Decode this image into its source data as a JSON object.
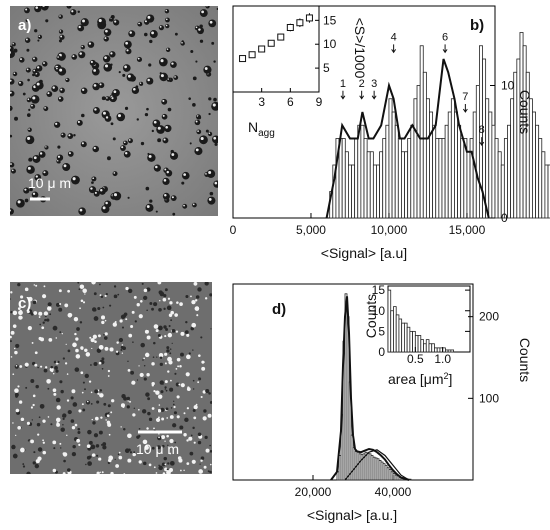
{
  "panels": {
    "a": {
      "label": "a)",
      "scale_bar": "10 μ m"
    },
    "b": {
      "label": "b)"
    },
    "c": {
      "label": "c)",
      "scale_bar": "10 μ m"
    },
    "d": {
      "label": "d)"
    }
  },
  "colors": {
    "photo_a_bg": "#8a8a8a",
    "photo_c_bg": "#6e6e6e",
    "bar_stroke": "#222222",
    "line": "#111111"
  },
  "chart_data": [
    {
      "id": "b",
      "type": "bar",
      "xlabel": "<Signal> [a.u]",
      "ylabel": "Counts",
      "x_ticks": [
        0,
        5000,
        10000,
        15000
      ],
      "x_tick_labels": [
        "0",
        "5,000",
        "10,000",
        "15,000"
      ],
      "y_ticks": [
        0,
        10
      ],
      "y_tick_labels": [
        "0",
        "10"
      ],
      "xlim": [
        0,
        16800
      ],
      "ylim": [
        0,
        16
      ],
      "bin_width": 200,
      "bins_start": 6000,
      "values": [
        0,
        2,
        4,
        6,
        6,
        6,
        5,
        4,
        4,
        6,
        7,
        7,
        6,
        5,
        5,
        4,
        4,
        5,
        6,
        7,
        9,
        8,
        7,
        6,
        5,
        5,
        6,
        7,
        9,
        10,
        13,
        11,
        9,
        8,
        7,
        6,
        6,
        6,
        7,
        8,
        9,
        8,
        7,
        6,
        6,
        5,
        6,
        8,
        10,
        13,
        12,
        9,
        8,
        7,
        6,
        5,
        4,
        6,
        7,
        9,
        11,
        12,
        14,
        13,
        11,
        9,
        8,
        7,
        6,
        5,
        4,
        4,
        5,
        5,
        6,
        6,
        4,
        3,
        2,
        2,
        2,
        0
      ],
      "fit": {
        "x": [
          6000,
          6500,
          7000,
          7500,
          8000,
          8300,
          8700,
          9000,
          9500,
          10000,
          10300,
          10700,
          11000,
          11500,
          12000,
          12500,
          13000,
          13500,
          13800,
          14200,
          14500,
          15000,
          15300,
          15700,
          16000,
          16400
        ],
        "y": [
          0,
          3,
          7,
          6,
          6,
          8,
          6,
          6,
          7,
          10,
          9,
          6,
          6,
          7,
          6,
          6,
          7,
          12,
          11,
          9,
          7,
          5,
          5,
          3,
          2,
          0
        ]
      },
      "peaks": [
        {
          "label": "1",
          "x": 7050,
          "y": 9
        },
        {
          "label": "2",
          "x": 8250,
          "y": 9
        },
        {
          "label": "3",
          "x": 9050,
          "y": 9
        },
        {
          "label": "4",
          "x": 10300,
          "y": 12.5
        },
        {
          "label": "6",
          "x": 13600,
          "y": 12.5
        },
        {
          "label": "7",
          "x": 14900,
          "y": 8
        },
        {
          "label": "8",
          "x": 15950,
          "y": 5.5
        }
      ],
      "inset": {
        "type": "scatter",
        "xlabel": "N",
        "xlabel_sub": "agg",
        "ylabel": "<S>/1000",
        "x_ticks": [
          3,
          6,
          9
        ],
        "x_tick_labels": [
          "3",
          "6",
          "9"
        ],
        "y_ticks": [
          5,
          10,
          15
        ],
        "y_tick_labels": [
          "5",
          "10",
          "15"
        ],
        "xlim": [
          0,
          9
        ],
        "ylim": [
          0,
          18
        ],
        "x": [
          1,
          2,
          3,
          4,
          5,
          6,
          7,
          8
        ],
        "y": [
          7,
          7.8,
          9,
          10.2,
          11.5,
          13.5,
          14.5,
          15.5
        ],
        "err": [
          0.5,
          0.5,
          0.6,
          0.6,
          0.7,
          0.8,
          0.9,
          1.0
        ]
      }
    },
    {
      "id": "d",
      "type": "bar",
      "xlabel": "<Signal> [a.u.]",
      "ylabel": "Counts",
      "x_ticks": [
        20000,
        40000
      ],
      "x_tick_labels": [
        "20,000",
        "40,000"
      ],
      "y_ticks": [
        100,
        200
      ],
      "y_tick_labels": [
        "100",
        "200"
      ],
      "xlim": [
        0,
        60000
      ],
      "ylim": [
        0,
        240
      ],
      "bin_width": 500,
      "bins_start": 26000,
      "values": [
        10,
        30,
        80,
        170,
        228,
        200,
        120,
        55,
        40,
        35,
        34,
        32,
        31,
        32,
        34,
        33,
        32,
        30,
        28,
        27,
        26,
        24,
        22,
        20,
        18,
        15,
        13,
        10,
        8,
        6,
        5,
        4,
        3,
        2,
        2,
        1,
        1,
        0
      ],
      "fit": {
        "x": [
          24500,
          26000,
          27000,
          27500,
          28000,
          28500,
          29000,
          29500,
          30000,
          30500,
          31000,
          32000,
          33000,
          34000,
          35000,
          36000,
          37000,
          38000,
          39000,
          40000,
          41000,
          42000,
          44000
        ],
        "y": [
          0,
          10,
          60,
          140,
          200,
          225,
          180,
          100,
          55,
          38,
          35,
          34,
          36,
          38,
          37,
          34,
          30,
          25,
          18,
          12,
          7,
          3,
          0
        ]
      },
      "fit2": {
        "x": [
          28000,
          30000,
          32000,
          34000,
          36000,
          38000,
          40000,
          42000,
          44000
        ],
        "y": [
          0,
          12,
          24,
          34,
          37,
          30,
          18,
          6,
          0
        ]
      },
      "inset": {
        "type": "bar",
        "xlabel": "area [μm",
        "xlabel_sup": "2",
        "xlabel_end": "]",
        "ylabel": "Counts",
        "x_ticks": [
          0.5,
          1.0
        ],
        "x_tick_labels": [
          "0.5",
          "1.0"
        ],
        "y_ticks": [
          0,
          5,
          10,
          15
        ],
        "y_tick_labels": [
          "0",
          "5",
          "10",
          "15"
        ],
        "xlim": [
          0,
          1.5
        ],
        "ylim": [
          0,
          16
        ],
        "bin_width": 0.05,
        "bins_start": 0.0,
        "values": [
          15,
          10,
          11,
          9,
          8,
          7,
          7,
          6,
          5,
          5,
          4,
          4,
          3,
          2,
          3,
          2,
          2,
          1,
          1,
          1,
          1,
          0.5,
          0.5,
          0.5
        ]
      }
    }
  ]
}
